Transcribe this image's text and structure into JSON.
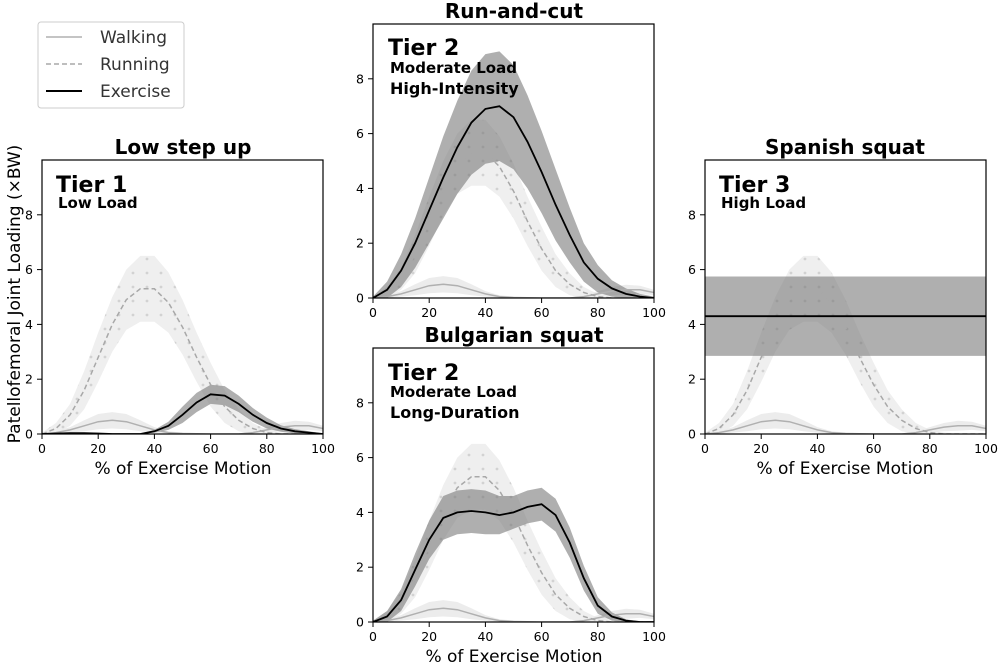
{
  "figure": {
    "ylabel": "Patellofemoral Joint Loading (×BW)",
    "xlabel": "% of Exercise Motion"
  },
  "legend": {
    "position": "top-left",
    "items": [
      "Walking",
      "Running",
      "Exercise"
    ]
  },
  "panels": {
    "low_step_up": {
      "title": "Low step up",
      "tier": "Tier 1",
      "load": "Low Load",
      "mode": ""
    },
    "run_and_cut": {
      "title": "Run-and-cut",
      "tier": "Tier 2",
      "load": "Moderate Load",
      "mode": "High-Intensity"
    },
    "bulgarian": {
      "title": "Bulgarian squat",
      "tier": "Tier 2",
      "load": "Moderate Load",
      "mode": "Long-Duration"
    },
    "spanish_squat": {
      "title": "Spanish squat",
      "tier": "Tier 3",
      "load": "High Load",
      "mode": ""
    }
  },
  "chart_data": {
    "type": "line",
    "xlim": [
      0,
      100
    ],
    "ylim": [
      0,
      10
    ],
    "xticks": [
      0,
      20,
      40,
      60,
      80,
      100
    ],
    "yticks": [
      0,
      2,
      4,
      6,
      8
    ],
    "colors": {
      "walking": "#b0b0b0",
      "running": "#a8a8a8",
      "exercise": "#000000",
      "band": "#6e6e6e"
    },
    "reference_series": {
      "x": [
        0,
        5,
        10,
        15,
        20,
        25,
        30,
        35,
        40,
        45,
        50,
        55,
        60,
        65,
        70,
        75,
        80,
        85,
        90,
        95,
        100
      ],
      "walking": {
        "mean": [
          0,
          0.05,
          0.15,
          0.3,
          0.45,
          0.5,
          0.45,
          0.3,
          0.15,
          0.05,
          0.02,
          0.01,
          0,
          0,
          0,
          0.05,
          0.15,
          0.25,
          0.3,
          0.3,
          0.2
        ],
        "sd": [
          0.02,
          0.05,
          0.1,
          0.2,
          0.28,
          0.3,
          0.28,
          0.2,
          0.1,
          0.05,
          0.03,
          0.02,
          0.02,
          0.02,
          0.02,
          0.05,
          0.1,
          0.15,
          0.18,
          0.15,
          0.1
        ]
      },
      "running": {
        "mean": [
          0,
          0.2,
          0.7,
          1.6,
          2.8,
          4.0,
          4.9,
          5.3,
          5.3,
          4.8,
          3.9,
          2.8,
          1.8,
          1.0,
          0.5,
          0.2,
          0.05,
          0,
          0,
          0,
          0
        ],
        "sd": [
          0.05,
          0.2,
          0.4,
          0.7,
          0.9,
          1.0,
          1.1,
          1.2,
          1.2,
          1.1,
          1.0,
          0.9,
          0.8,
          0.6,
          0.4,
          0.2,
          0.1,
          0.05,
          0.02,
          0.02,
          0.02
        ]
      }
    },
    "exercises": [
      {
        "panel": "Low step up",
        "mean": [
          0,
          0.02,
          0.03,
          0.03,
          0.02,
          0.0,
          0.0,
          0.0,
          0.1,
          0.3,
          0.7,
          1.15,
          1.45,
          1.4,
          1.1,
          0.7,
          0.4,
          0.2,
          0.1,
          0.05,
          0
        ],
        "sd": [
          0.02,
          0.02,
          0.02,
          0.02,
          0.02,
          0.02,
          0.02,
          0.02,
          0.05,
          0.15,
          0.3,
          0.35,
          0.35,
          0.35,
          0.3,
          0.25,
          0.2,
          0.12,
          0.08,
          0.05,
          0.02
        ]
      },
      {
        "panel": "Run-and-cut",
        "mean": [
          0,
          0.3,
          1.0,
          2.0,
          3.2,
          4.4,
          5.5,
          6.4,
          6.9,
          7.0,
          6.6,
          5.7,
          4.6,
          3.4,
          2.3,
          1.3,
          0.7,
          0.35,
          0.15,
          0.05,
          0
        ],
        "sd": [
          0.05,
          0.3,
          0.6,
          0.9,
          1.2,
          1.5,
          1.7,
          1.9,
          2.0,
          2.0,
          1.9,
          1.7,
          1.5,
          1.3,
          1.0,
          0.7,
          0.5,
          0.3,
          0.2,
          0.1,
          0.05
        ]
      },
      {
        "panel": "Bulgarian squat",
        "mean": [
          0,
          0.2,
          0.8,
          1.9,
          3.0,
          3.8,
          4.0,
          4.05,
          4.0,
          3.9,
          4.0,
          4.2,
          4.3,
          3.9,
          2.9,
          1.6,
          0.6,
          0.2,
          0.05,
          0,
          0
        ],
        "sd": [
          0.05,
          0.2,
          0.4,
          0.6,
          0.7,
          0.8,
          0.8,
          0.8,
          0.8,
          0.7,
          0.6,
          0.6,
          0.6,
          0.6,
          0.55,
          0.45,
          0.3,
          0.15,
          0.05,
          0.02,
          0.02
        ]
      },
      {
        "panel": "Spanish squat",
        "mean": [
          4.3,
          4.3,
          4.3,
          4.3,
          4.3,
          4.3,
          4.3,
          4.3,
          4.3,
          4.3,
          4.3,
          4.3,
          4.3,
          4.3,
          4.3,
          4.3,
          4.3,
          4.3,
          4.3,
          4.3,
          4.3
        ],
        "sd": [
          1.45,
          1.45,
          1.45,
          1.45,
          1.45,
          1.45,
          1.45,
          1.45,
          1.45,
          1.45,
          1.45,
          1.45,
          1.45,
          1.45,
          1.45,
          1.45,
          1.45,
          1.45,
          1.45,
          1.45,
          1.45
        ]
      }
    ]
  }
}
